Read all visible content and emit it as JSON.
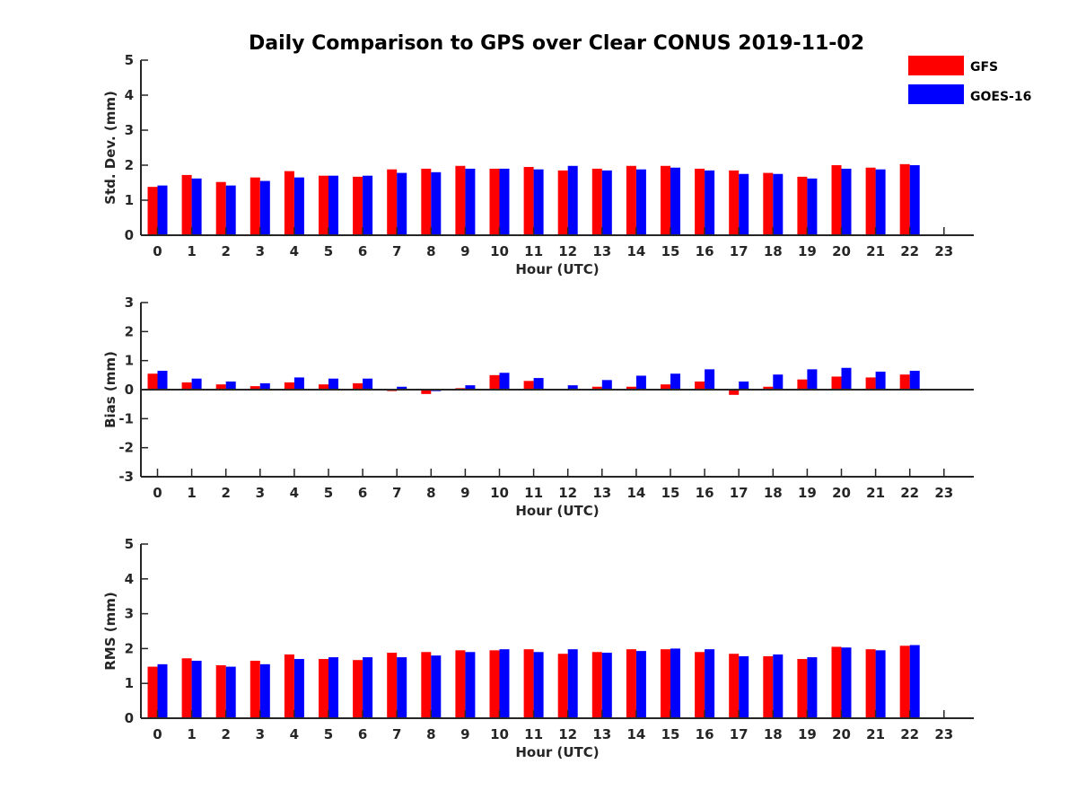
{
  "title": "Daily Comparison to GPS over Clear CONUS 2019-11-02",
  "colors": {
    "GFS": "#ff0000",
    "GOES-16": "#0000ff",
    "axis": "#262626"
  },
  "legend": [
    "GFS",
    "GOES-16"
  ],
  "chart_data": [
    {
      "type": "bar",
      "id": "stddev",
      "xlabel": "Hour (UTC)",
      "ylabel": "Std. Dev. (mm)",
      "ylim": [
        0,
        5
      ],
      "yticks": [
        0,
        1,
        2,
        3,
        4,
        5
      ],
      "ytick_labels": [
        "0",
        "1",
        "2",
        "3",
        "4",
        "5"
      ],
      "categories": [
        "0",
        "1",
        "2",
        "3",
        "4",
        "5",
        "6",
        "7",
        "8",
        "9",
        "10",
        "11",
        "12",
        "13",
        "14",
        "15",
        "16",
        "17",
        "18",
        "19",
        "20",
        "21",
        "22",
        "23"
      ],
      "series": [
        {
          "name": "GFS",
          "values": [
            1.38,
            1.72,
            1.52,
            1.65,
            1.83,
            1.7,
            1.67,
            1.88,
            1.9,
            1.98,
            1.9,
            1.95,
            1.85,
            1.9,
            1.98,
            1.98,
            1.9,
            1.85,
            1.78,
            1.67,
            2.0,
            1.93,
            2.03,
            null
          ]
        },
        {
          "name": "GOES-16",
          "values": [
            1.42,
            1.62,
            1.42,
            1.55,
            1.65,
            1.7,
            1.7,
            1.78,
            1.8,
            1.9,
            1.9,
            1.88,
            1.98,
            1.85,
            1.88,
            1.93,
            1.85,
            1.75,
            1.75,
            1.62,
            1.9,
            1.88,
            2.0,
            null
          ]
        }
      ]
    },
    {
      "type": "bar",
      "id": "bias",
      "xlabel": "Hour (UTC)",
      "ylabel": "Bias (mm)",
      "ylim": [
        -3,
        3
      ],
      "yticks": [
        -3,
        -2,
        -1,
        0,
        1,
        2,
        3
      ],
      "ytick_labels": [
        "-3",
        "-2",
        "-1",
        "0",
        "1",
        "2",
        "3"
      ],
      "categories": [
        "0",
        "1",
        "2",
        "3",
        "4",
        "5",
        "6",
        "7",
        "8",
        "9",
        "10",
        "11",
        "12",
        "13",
        "14",
        "15",
        "16",
        "17",
        "18",
        "19",
        "20",
        "21",
        "22",
        "23"
      ],
      "series": [
        {
          "name": "GFS",
          "values": [
            0.55,
            0.25,
            0.18,
            0.12,
            0.25,
            0.18,
            0.22,
            -0.05,
            -0.15,
            0.05,
            0.5,
            0.3,
            0.02,
            0.1,
            0.1,
            0.18,
            0.28,
            -0.18,
            0.1,
            0.35,
            0.45,
            0.42,
            0.52,
            null
          ]
        },
        {
          "name": "GOES-16",
          "values": [
            0.65,
            0.38,
            0.28,
            0.22,
            0.42,
            0.38,
            0.38,
            0.1,
            -0.05,
            0.15,
            0.58,
            0.4,
            0.15,
            0.33,
            0.48,
            0.55,
            0.7,
            0.28,
            0.52,
            0.7,
            0.75,
            0.62,
            0.65,
            null
          ]
        }
      ]
    },
    {
      "type": "bar",
      "id": "rms",
      "xlabel": "Hour (UTC)",
      "ylabel": "RMS (mm)",
      "ylim": [
        0,
        5
      ],
      "yticks": [
        0,
        1,
        2,
        3,
        4,
        5
      ],
      "ytick_labels": [
        "0",
        "1",
        "2",
        "3",
        "4",
        "5"
      ],
      "categories": [
        "0",
        "1",
        "2",
        "3",
        "4",
        "5",
        "6",
        "7",
        "8",
        "9",
        "10",
        "11",
        "12",
        "13",
        "14",
        "15",
        "16",
        "17",
        "18",
        "19",
        "20",
        "21",
        "22",
        "23"
      ],
      "series": [
        {
          "name": "GFS",
          "values": [
            1.48,
            1.72,
            1.52,
            1.65,
            1.83,
            1.7,
            1.67,
            1.88,
            1.9,
            1.95,
            1.95,
            1.98,
            1.85,
            1.9,
            1.98,
            1.98,
            1.9,
            1.85,
            1.78,
            1.7,
            2.05,
            1.98,
            2.08,
            null
          ]
        },
        {
          "name": "GOES-16",
          "values": [
            1.55,
            1.65,
            1.48,
            1.55,
            1.7,
            1.75,
            1.75,
            1.75,
            1.8,
            1.9,
            1.98,
            1.9,
            1.98,
            1.88,
            1.93,
            2.0,
            1.98,
            1.78,
            1.83,
            1.75,
            2.03,
            1.95,
            2.1,
            null
          ]
        }
      ]
    }
  ]
}
